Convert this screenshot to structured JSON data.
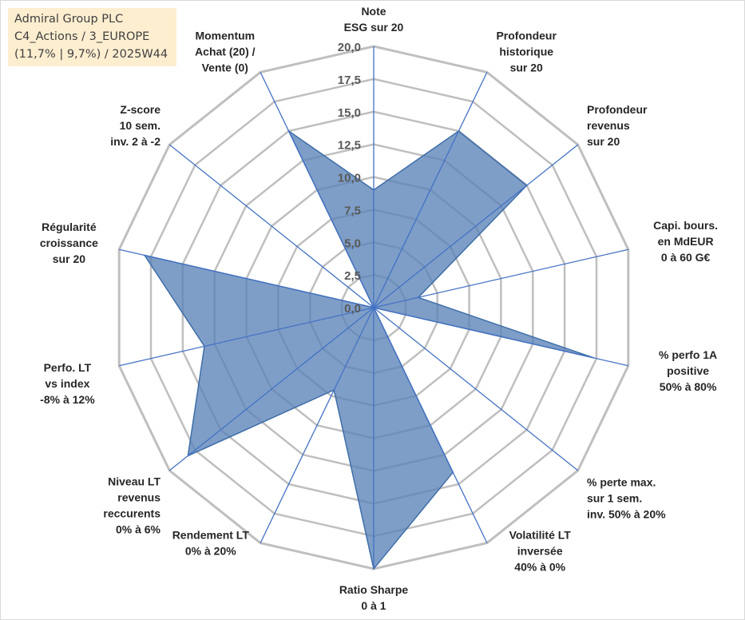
{
  "info_box": {
    "line1": "Admiral Group PLC",
    "line2": "C4_Actions / 3_EUROPE",
    "line3": "(11,7% | 9,7%) / 2025W44"
  },
  "colors": {
    "fill": "#5a83b8",
    "edge": "#3f6ea8",
    "grid": "#bfbfbf",
    "spoke": "#4472c4",
    "info_bg": "#fdeed0"
  },
  "chart_data": {
    "type": "radar",
    "title": "",
    "rmin": 0,
    "rmax": 20,
    "ticks": [
      "0,0",
      "2,5",
      "5,0",
      "7,5",
      "10,0",
      "12,5",
      "15,0",
      "17,5",
      "20,0"
    ],
    "grid": true,
    "categories": [
      [
        "Note",
        "ESG sur 20"
      ],
      [
        "Profondeur",
        "historique",
        "sur 20"
      ],
      [
        "Profondeur",
        "revenus",
        "sur 20"
      ],
      [
        "Capi. bours.",
        "en MdEUR",
        "0 à 60 G€"
      ],
      [
        "% perfo 1A",
        "positive",
        "50% à 80%"
      ],
      [
        "% perte max.",
        "sur 1 sem.",
        "inv. 50% à 20%"
      ],
      [
        "Volatilité LT",
        "inversée",
        "40% à 0%"
      ],
      [
        "Ratio Sharpe",
        "0 à 1"
      ],
      [
        "Rendement LT",
        "0% à 20%"
      ],
      [
        "Niveau LT",
        "revenus",
        "reccurents",
        "0% à 6%"
      ],
      [
        "Perfo. LT",
        "vs index",
        "-8% à 12%"
      ],
      [
        "Régularité",
        "croissance",
        "sur 20"
      ],
      [
        "Z-score",
        "10 sem.",
        "inv. 2 à -2"
      ],
      [
        "Momentum",
        "Achat (20) /",
        "Vente (0)"
      ]
    ],
    "series": [
      {
        "values": [
          9.0,
          15.0,
          15.0,
          3.5,
          17.3,
          0.0,
          14.0,
          20.0,
          7.0,
          18.2,
          13.3,
          18.0,
          0.0,
          15.0
        ]
      }
    ]
  }
}
